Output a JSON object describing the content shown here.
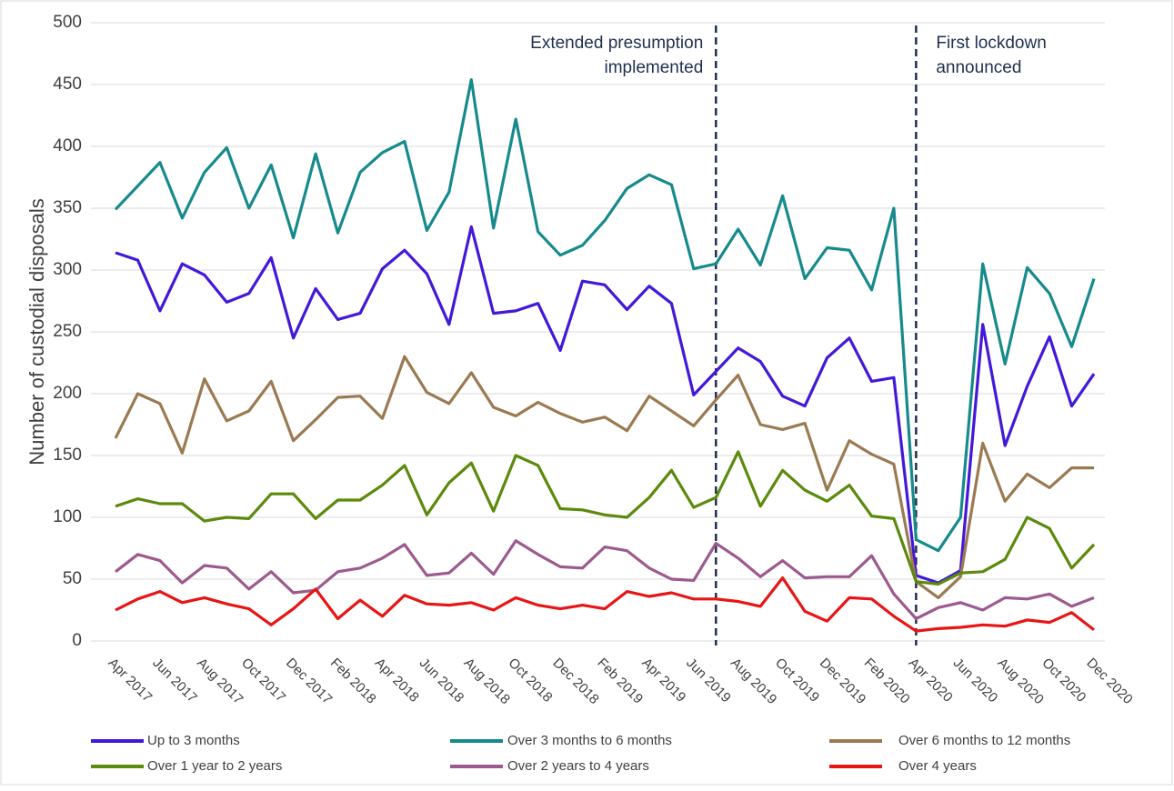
{
  "chart_data": {
    "type": "line",
    "y_label": "Number of custodial disposals",
    "categories": [
      "Apr 2017",
      null,
      "Jun 2017",
      null,
      "Aug 2017",
      null,
      "Oct 2017",
      null,
      "Dec 2017",
      null,
      "Feb 2018",
      null,
      "Apr 2018",
      null,
      "Jun 2018",
      null,
      "Aug 2018",
      null,
      "Oct 2018",
      null,
      "Dec 2018",
      null,
      "Feb 2019",
      null,
      "Apr 2019",
      null,
      "Jun 2019",
      null,
      "Aug 2019",
      null,
      "Oct 2019",
      null,
      "Dec 2019",
      null,
      "Feb 2020",
      null,
      "Apr 2020",
      null,
      "Jun 2020",
      null,
      "Aug 2020",
      null,
      "Oct 2020",
      null,
      "Dec 2020"
    ],
    "series": [
      {
        "name": "Up to 3 months",
        "color": "#4318d9",
        "values": [
          314,
          308,
          267,
          305,
          296,
          274,
          281,
          310,
          245,
          285,
          260,
          265,
          301,
          316,
          297,
          256,
          335,
          265,
          267,
          273,
          235,
          291,
          288,
          268,
          287,
          273,
          199,
          218,
          237,
          226,
          198,
          190,
          229,
          245,
          210,
          213,
          53,
          47,
          57,
          256,
          158,
          206,
          246,
          190,
          216
        ]
      },
      {
        "name": "Over 3 months to 6 months",
        "color": "#168a8c",
        "values": [
          349,
          368,
          387,
          342,
          379,
          399,
          350,
          385,
          326,
          394,
          330,
          379,
          395,
          404,
          332,
          363,
          454,
          334,
          422,
          331,
          312,
          320,
          340,
          366,
          377,
          369,
          301,
          305,
          333,
          304,
          360,
          293,
          318,
          316,
          284,
          350,
          82,
          73,
          100,
          305,
          224,
          302,
          281,
          238,
          293
        ]
      },
      {
        "name": "Over 6 months to 12 months",
        "color": "#9b7a52",
        "values": [
          164,
          200,
          192,
          152,
          212,
          178,
          186,
          210,
          162,
          179,
          197,
          198,
          180,
          230,
          201,
          192,
          217,
          189,
          182,
          193,
          184,
          177,
          181,
          170,
          198,
          186,
          174,
          195,
          215,
          175,
          171,
          176,
          122,
          162,
          151,
          143,
          48,
          35,
          52,
          160,
          113,
          135,
          124,
          140,
          140
        ]
      },
      {
        "name": "Over 1 year to 2 years",
        "color": "#5b8a0c",
        "values": [
          109,
          115,
          111,
          111,
          97,
          100,
          99,
          119,
          119,
          99,
          114,
          114,
          126,
          142,
          102,
          128,
          144,
          105,
          150,
          142,
          107,
          106,
          102,
          100,
          116,
          138,
          108,
          116,
          153,
          109,
          138,
          122,
          113,
          126,
          101,
          99,
          48,
          46,
          55,
          56,
          66,
          100,
          91,
          59,
          78
        ]
      },
      {
        "name": "Over 2 years to 4 years",
        "color": "#9c5a8e",
        "values": [
          56,
          70,
          65,
          47,
          61,
          59,
          42,
          56,
          39,
          41,
          56,
          59,
          67,
          78,
          53,
          55,
          71,
          54,
          81,
          70,
          60,
          59,
          76,
          73,
          59,
          50,
          49,
          79,
          67,
          52,
          65,
          51,
          52,
          52,
          69,
          38,
          18,
          27,
          31,
          25,
          35,
          34,
          38,
          28,
          35
        ]
      },
      {
        "name": "Over 4 years",
        "color": "#e81515",
        "values": [
          25,
          34,
          40,
          31,
          35,
          30,
          26,
          13,
          26,
          42,
          18,
          33,
          20,
          37,
          30,
          29,
          31,
          25,
          35,
          29,
          26,
          29,
          26,
          40,
          36,
          39,
          34,
          34,
          32,
          28,
          51,
          24,
          16,
          35,
          34,
          20,
          8,
          10,
          11,
          13,
          12,
          17,
          15,
          23,
          9
        ]
      }
    ],
    "ylim": [
      0,
      500
    ],
    "yticks": [
      0,
      50,
      100,
      150,
      200,
      250,
      300,
      350,
      400,
      450,
      500
    ],
    "grid": true,
    "annotations": [
      {
        "lines": [
          "Extended presumption",
          "implemented"
        ]
      },
      {
        "lines": [
          "First lockdown",
          "announced"
        ]
      }
    ]
  }
}
